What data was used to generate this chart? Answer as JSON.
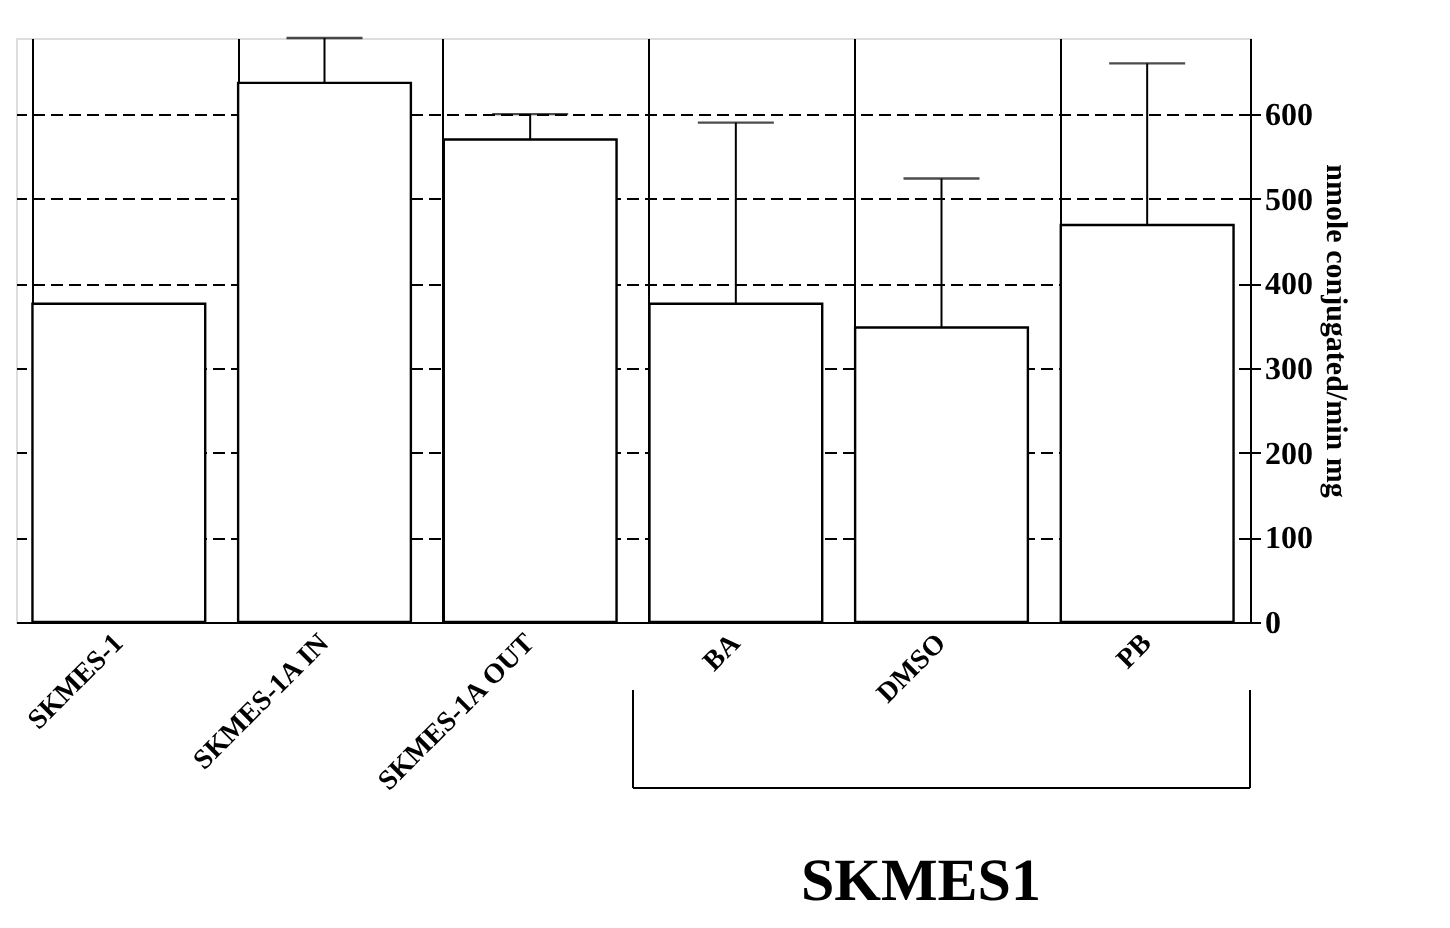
{
  "chart_data": {
    "type": "bar",
    "ylabel": "nmole conjugated/min mg",
    "categories": [
      "SKMES-1",
      "SKMES-1A IN",
      "SKMES-1A OUT",
      "BA",
      "DMSO",
      "PB"
    ],
    "values": [
      376,
      637,
      570,
      376,
      348,
      469
    ],
    "errors": [
      null,
      [
        637,
        690
      ],
      [
        570,
        600
      ],
      [
        376,
        590
      ],
      [
        348,
        524
      ],
      [
        469,
        660
      ]
    ],
    "color": "#ffffff",
    "ylim": [
      0,
      690
    ],
    "yticks": [
      0,
      100,
      200,
      300,
      400,
      500,
      600
    ],
    "grid": true,
    "annotations": [
      "SKMES1"
    ]
  }
}
